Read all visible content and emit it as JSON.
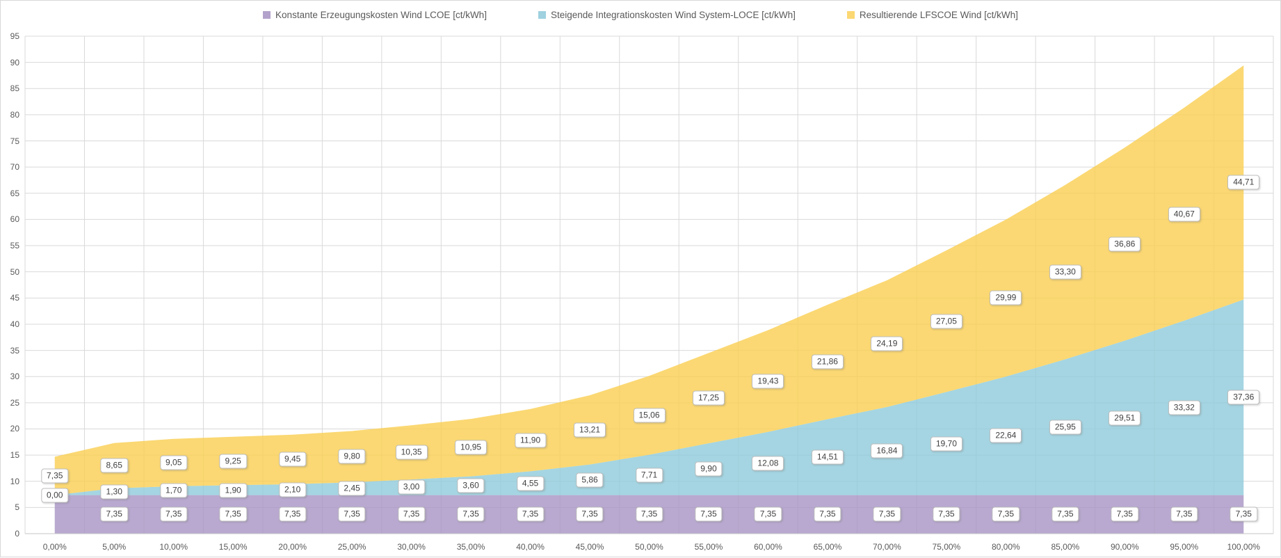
{
  "legend": [
    {
      "label": "Konstante Erzeugungskosten Wind LCOE [ct/kWh]",
      "color": "#b3a2cb"
    },
    {
      "label": "Steigende Integrationskosten Wind System-LOCE [ct/kWh]",
      "color": "#9fd1df"
    },
    {
      "label": "Resultierende LFSCOE Wind [ct/kWh]",
      "color": "#fbd873"
    }
  ],
  "colors": {
    "grid": "#d9d9d9",
    "axis_line": "#c6c6c6",
    "tick_text": "#595959",
    "label_text": "#404040",
    "series_purple": "#a794c4",
    "series_blue": "#8fcbdb",
    "series_yellow": "#face50",
    "fill_opacity": 0.8
  },
  "chart_data": {
    "type": "area",
    "stacked": true,
    "title": "",
    "xlabel": "",
    "ylabel": "",
    "ylim": [
      0,
      95
    ],
    "y_tick_step": 5,
    "grid": true,
    "legend_position": "top",
    "y_tick_labels": [
      "0",
      "5",
      "10",
      "15",
      "20",
      "25",
      "30",
      "35",
      "40",
      "45",
      "50",
      "55",
      "60",
      "65",
      "70",
      "75",
      "80",
      "85",
      "90",
      "95"
    ],
    "x_tick_labels": [
      "0,00%",
      "5,00%",
      "10,00%",
      "15,00%",
      "20,00%",
      "25,00%",
      "30,00%",
      "35,00%",
      "40,00%",
      "45,00%",
      "50,00%",
      "55,00%",
      "60,00%",
      "65,00%",
      "70,00%",
      "75,00%",
      "80,00%",
      "85,00%",
      "90,00%",
      "95,00%",
      "100,00%"
    ],
    "x_values_percent": [
      0,
      5,
      10,
      15,
      20,
      25,
      30,
      35,
      40,
      45,
      50,
      55,
      60,
      65,
      70,
      75,
      80,
      85,
      90,
      95,
      100
    ],
    "series": [
      {
        "name": "Konstante Erzeugungskosten Wind LCOE [ct/kWh]",
        "color_key": "series_purple",
        "values": [
          7.35,
          7.35,
          7.35,
          7.35,
          7.35,
          7.35,
          7.35,
          7.35,
          7.35,
          7.35,
          7.35,
          7.35,
          7.35,
          7.35,
          7.35,
          7.35,
          7.35,
          7.35,
          7.35,
          7.35,
          7.35
        ],
        "labels": [
          "",
          "7,35",
          "7,35",
          "7,35",
          "7,35",
          "7,35",
          "7,35",
          "7,35",
          "7,35",
          "7,35",
          "7,35",
          "7,35",
          "7,35",
          "7,35",
          "7,35",
          "7,35",
          "7,35",
          "7,35",
          "7,35",
          "7,35",
          "7,35"
        ]
      },
      {
        "name": "Steigende Integrationskosten Wind System-LOCE [ct/kWh]",
        "color_key": "series_blue",
        "values": [
          0.0,
          1.3,
          1.7,
          1.9,
          2.1,
          2.45,
          3.0,
          3.6,
          4.55,
          5.86,
          7.71,
          9.9,
          12.08,
          14.51,
          16.84,
          19.7,
          22.64,
          25.95,
          29.51,
          33.32,
          37.36
        ],
        "labels": [
          "0,00",
          "1,30",
          "1,70",
          "1,90",
          "2,10",
          "2,45",
          "3,00",
          "3,60",
          "4,55",
          "5,86",
          "7,71",
          "9,90",
          "12,08",
          "14,51",
          "16,84",
          "19,70",
          "22,64",
          "25,95",
          "29,51",
          "33,32",
          "37,36"
        ]
      },
      {
        "name": "Resultierende LFSCOE Wind [ct/kWh]",
        "color_key": "series_yellow",
        "values": [
          7.35,
          8.65,
          9.05,
          9.25,
          9.45,
          9.8,
          10.35,
          10.95,
          11.9,
          13.21,
          15.06,
          17.25,
          19.43,
          21.86,
          24.19,
          27.05,
          29.99,
          33.3,
          36.86,
          40.67,
          44.71
        ],
        "labels": [
          "7,35",
          "8,65",
          "9,05",
          "9,25",
          "9,45",
          "9,80",
          "10,35",
          "10,95",
          "11,90",
          "13,21",
          "15,06",
          "17,25",
          "19,43",
          "21,86",
          "24,19",
          "27,05",
          "29,99",
          "33,30",
          "36,86",
          "40,67",
          "44,71"
        ]
      }
    ]
  }
}
